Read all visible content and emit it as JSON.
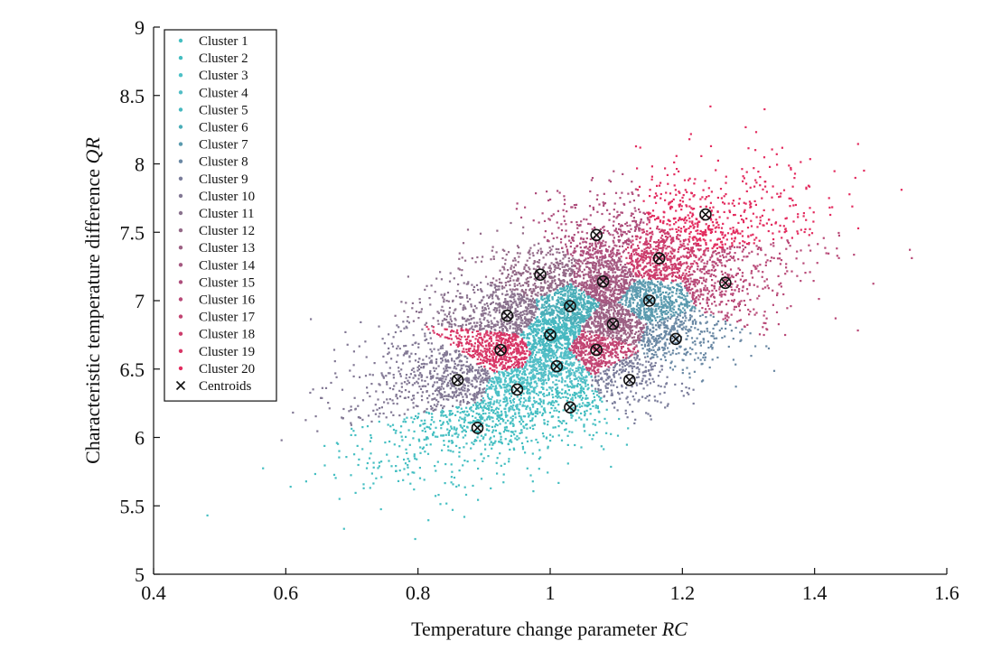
{
  "chart_data": {
    "type": "scatter",
    "title": "",
    "xlabel": "Temperature change parameter ",
    "xlabel_italic": "RC",
    "ylabel": "Characteristic temperature difference ",
    "ylabel_italic": "QR",
    "xlim": [
      0.4,
      1.6
    ],
    "ylim": [
      5,
      9
    ],
    "xticks": [
      "0.4",
      "0.6",
      "0.8",
      "1",
      "1.2",
      "1.4",
      "1.6"
    ],
    "yticks": [
      "5",
      "5.5",
      "6",
      "6.5",
      "7",
      "7.5",
      "8",
      "8.5",
      "9"
    ],
    "grid": false,
    "legend_position": "top-left",
    "legend_entries": [
      "Cluster 1",
      "Cluster 2",
      "Cluster 3",
      "Cluster 4",
      "Cluster 5",
      "Cluster 6",
      "Cluster 7",
      "Cluster 8",
      "Cluster 9",
      "Cluster 10",
      "Cluster 11",
      "Cluster 12",
      "Cluster 13",
      "Cluster 14",
      "Cluster 15",
      "Cluster 16",
      "Cluster 17",
      "Cluster 18",
      "Cluster 19",
      "Cluster 20",
      "Centroids"
    ],
    "series": [
      {
        "color": "#45bfc2"
      },
      {
        "color": "#44bec1"
      },
      {
        "color": "#4cc0c6"
      },
      {
        "color": "#52bec6"
      },
      {
        "color": "#47b8c0"
      },
      {
        "color": "#4aaeb8"
      },
      {
        "color": "#5a9aae"
      },
      {
        "color": "#6a88a4"
      },
      {
        "color": "#7a7c9a"
      },
      {
        "color": "#827894"
      },
      {
        "color": "#8a728e"
      },
      {
        "color": "#946a88"
      },
      {
        "color": "#9c6184"
      },
      {
        "color": "#a45880"
      },
      {
        "color": "#ae4e7c"
      },
      {
        "color": "#b84a78"
      },
      {
        "color": "#c24472"
      },
      {
        "color": "#cc3c6c"
      },
      {
        "color": "#d83666"
      },
      {
        "color": "#e32c5f"
      }
    ],
    "centroids": {
      "name": "Centroids",
      "points": [
        [
          0.89,
          6.07
        ],
        [
          1.03,
          6.22
        ],
        [
          0.95,
          6.35
        ],
        [
          1.01,
          6.52
        ],
        [
          1.0,
          6.75
        ],
        [
          1.03,
          6.96
        ],
        [
          1.15,
          7.0
        ],
        [
          1.19,
          6.72
        ],
        [
          1.12,
          6.42
        ],
        [
          0.86,
          6.42
        ],
        [
          0.935,
          6.89
        ],
        [
          0.985,
          7.19
        ],
        [
          1.095,
          6.83
        ],
        [
          1.08,
          7.14
        ],
        [
          1.07,
          7.48
        ],
        [
          1.265,
          7.13
        ],
        [
          1.07,
          6.64
        ],
        [
          1.165,
          7.31
        ],
        [
          0.925,
          6.64
        ],
        [
          1.235,
          7.63
        ]
      ]
    }
  }
}
